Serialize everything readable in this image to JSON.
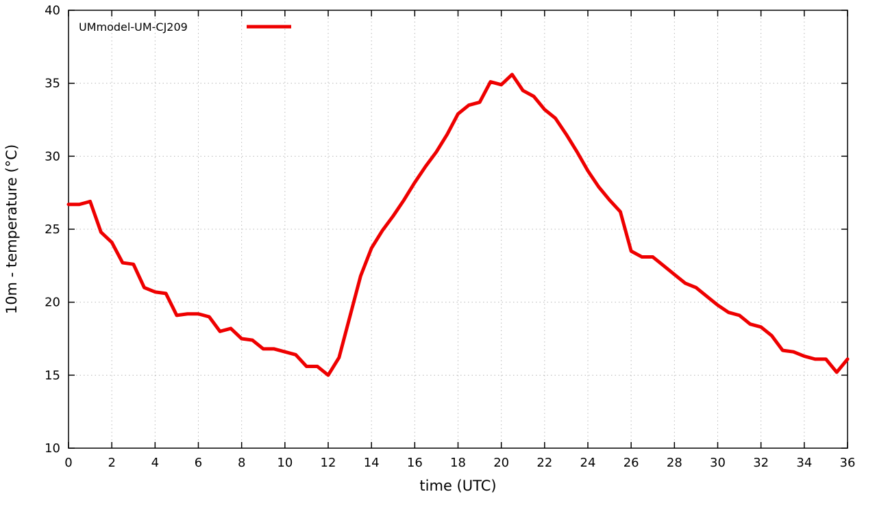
{
  "chart_data": {
    "type": "line",
    "title": "",
    "xlabel": "time (UTC)",
    "ylabel": "10m - temperature (°C)",
    "xlim": [
      0,
      36
    ],
    "ylim": [
      10,
      40
    ],
    "xticks": [
      0,
      2,
      4,
      6,
      8,
      10,
      12,
      14,
      16,
      18,
      20,
      22,
      24,
      26,
      28,
      30,
      32,
      34,
      36
    ],
    "yticks": [
      10,
      15,
      20,
      25,
      30,
      35,
      40
    ],
    "grid": true,
    "legend_position": "top-left",
    "series": [
      {
        "name": "UMmodel-UM-CJ209",
        "color": "#ee0000",
        "line_width": 5,
        "x": [
          0,
          0.5,
          1,
          1.5,
          2,
          2.5,
          3,
          3.5,
          4,
          4.5,
          5,
          5.5,
          6,
          6.5,
          7,
          7.5,
          8,
          8.5,
          9,
          9.5,
          10,
          10.5,
          11,
          11.5,
          12,
          12.5,
          13,
          13.5,
          14,
          14.5,
          15,
          15.5,
          16,
          16.5,
          17,
          17.5,
          18,
          18.5,
          19,
          19.5,
          20,
          20.5,
          21,
          21.5,
          22,
          22.5,
          23,
          23.5,
          24,
          24.5,
          25,
          25.5,
          26,
          26.5,
          27,
          27.5,
          28,
          28.5,
          29,
          29.5,
          30,
          30.5,
          31,
          31.5,
          32,
          32.5,
          33,
          33.5,
          34,
          34.5,
          35,
          35.5,
          36
        ],
        "values": [
          26.7,
          26.7,
          26.9,
          24.8,
          24.1,
          22.7,
          22.6,
          21.0,
          20.7,
          20.6,
          19.1,
          19.2,
          19.2,
          19.0,
          18.0,
          18.2,
          17.5,
          17.4,
          16.8,
          16.8,
          16.6,
          16.4,
          15.6,
          15.6,
          15.0,
          16.2,
          19.0,
          21.8,
          23.7,
          24.9,
          25.9,
          27.0,
          28.2,
          29.3,
          30.3,
          31.5,
          32.9,
          33.5,
          33.7,
          35.1,
          34.9,
          35.6,
          34.5,
          34.1,
          33.2,
          32.6,
          31.5,
          30.3,
          29.0,
          27.9,
          27.0,
          26.2,
          23.5,
          23.1,
          23.1,
          22.5,
          21.9,
          21.3,
          21.0,
          20.4,
          19.8,
          19.3,
          19.1,
          18.5,
          18.3,
          17.7,
          16.7,
          16.6,
          16.3,
          16.1,
          16.1,
          15.2,
          16.1
        ]
      }
    ],
    "colors": {
      "line": "#ee0000",
      "grid": "#b8b8b8",
      "border": "#000000",
      "background": "#ffffff"
    }
  }
}
